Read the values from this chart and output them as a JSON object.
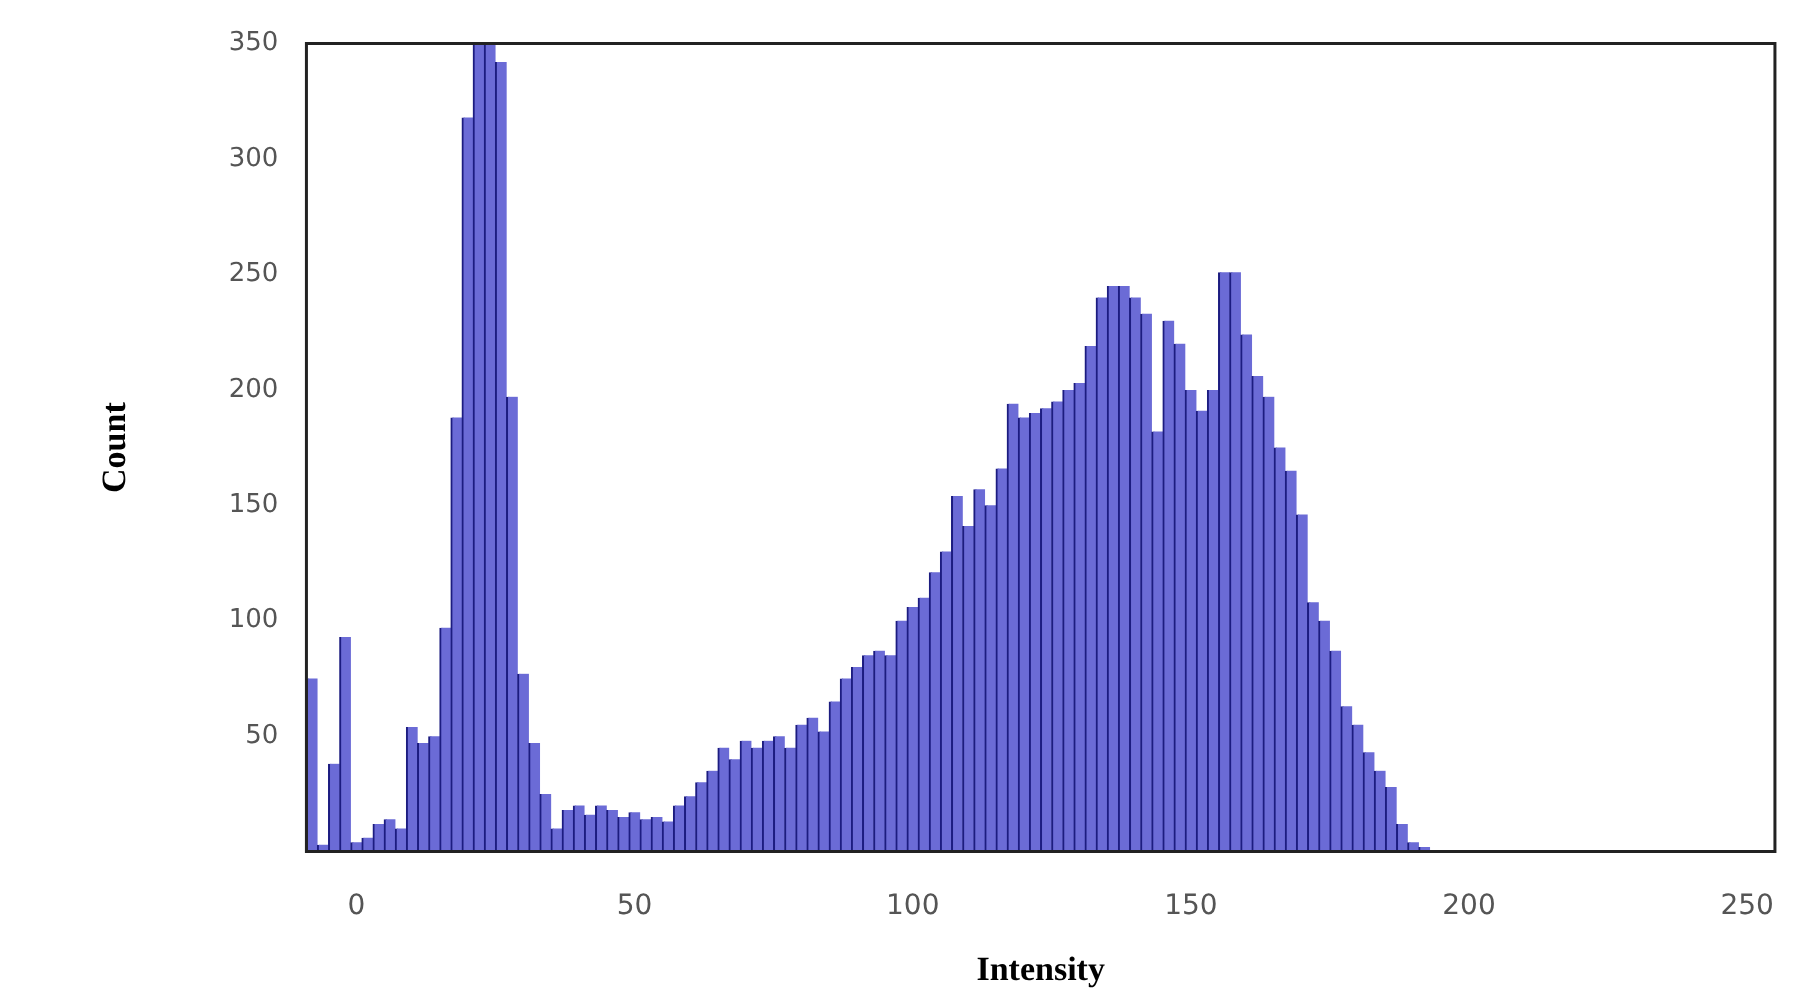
{
  "chart_data": {
    "type": "histogram",
    "xlabel": "Intensity",
    "ylabel": "Count",
    "bins": [
      -9,
      -7,
      -5,
      -3,
      -1,
      1,
      3,
      5,
      7,
      9,
      11,
      13,
      15,
      17,
      19,
      21,
      23,
      25,
      27,
      29,
      31,
      33,
      35,
      37,
      39,
      41,
      43,
      45,
      47,
      49,
      51,
      53,
      55,
      57,
      59,
      61,
      63,
      65,
      67,
      69,
      71,
      73,
      75,
      77,
      79,
      81,
      83,
      85,
      87,
      89,
      91,
      93,
      95,
      97,
      99,
      101,
      103,
      105,
      107,
      109,
      111,
      113,
      115,
      117,
      119,
      121,
      123,
      125,
      127,
      129,
      131,
      133,
      135,
      137,
      139,
      141,
      143,
      145,
      147,
      149,
      151,
      153,
      155,
      157,
      159,
      161,
      163,
      165,
      167,
      169,
      171,
      173,
      175,
      177,
      179,
      181,
      183,
      185,
      187,
      189,
      191,
      193,
      195,
      197,
      199
    ],
    "values": [
      75,
      3,
      38,
      93,
      4,
      6,
      12,
      14,
      10,
      54,
      47,
      50,
      97,
      188,
      318,
      350,
      350,
      342,
      197,
      77,
      47,
      25,
      10,
      18,
      20,
      16,
      20,
      18,
      15,
      17,
      14,
      15,
      13,
      20,
      24,
      30,
      35,
      45,
      40,
      48,
      45,
      48,
      50,
      45,
      55,
      58,
      52,
      65,
      75,
      80,
      85,
      87,
      85,
      100,
      106,
      110,
      121,
      130,
      154,
      141,
      157,
      150,
      166,
      194,
      188,
      190,
      192,
      195,
      200,
      203,
      219,
      240,
      245,
      245,
      240,
      233,
      182,
      230,
      220,
      200,
      191,
      200,
      251,
      251,
      224,
      206,
      197,
      175,
      165,
      146,
      108,
      100,
      87,
      63,
      55,
      43,
      35,
      28,
      12,
      4,
      2,
      0,
      0,
      0
    ],
    "color": "#6b6bd6",
    "xlim": [
      -9,
      255
    ],
    "xticks": [
      0,
      50,
      100,
      150,
      200,
      250
    ],
    "ylim": [
      0,
      350
    ],
    "yticks": [
      50,
      100,
      150,
      200,
      250,
      300,
      350
    ],
    "grid": false,
    "legend": false
  }
}
